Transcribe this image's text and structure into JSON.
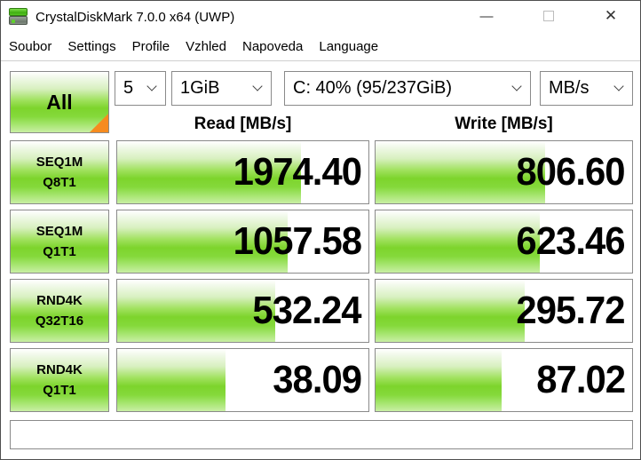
{
  "window": {
    "title": "CrystalDiskMark 7.0.0 x64 (UWP)",
    "minimize_glyph": "—",
    "close_glyph": "✕"
  },
  "menu": {
    "items": [
      "Soubor",
      "Settings",
      "Profile",
      "Vzhled",
      "Napoveda",
      "Language"
    ]
  },
  "toolbar": {
    "all_button_label": "All",
    "test_count": "5",
    "test_size": "1GiB",
    "target_drive": "C: 40% (95/237GiB)",
    "unit": "MB/s"
  },
  "headers": {
    "read": "Read [MB/s]",
    "write": "Write [MB/s]"
  },
  "chart_data": {
    "type": "bar",
    "unit": "MB/s",
    "note": "fill_pct values are the visible green bar widths (log-scaled meters)",
    "rows": [
      {
        "test": "SEQ1M",
        "queue_thread": "Q8T1",
        "read": "1974.40",
        "read_fill_pct": 73,
        "write": "806.60",
        "write_fill_pct": 66
      },
      {
        "test": "SEQ1M",
        "queue_thread": "Q1T1",
        "read": "1057.58",
        "read_fill_pct": 68,
        "write": "623.46",
        "write_fill_pct": 64
      },
      {
        "test": "RND4K",
        "queue_thread": "Q32T16",
        "read": "532.24",
        "read_fill_pct": 63,
        "write": "295.72",
        "write_fill_pct": 58
      },
      {
        "test": "RND4K",
        "queue_thread": "Q1T1",
        "read": "38.09",
        "read_fill_pct": 43,
        "write": "87.02",
        "write_fill_pct": 49
      }
    ]
  },
  "status_bar": {
    "text": ""
  },
  "colors": {
    "bar_green": "#7dd42c",
    "accent_orange": "#f68b1f",
    "border_gray": "#8a8a8a"
  }
}
